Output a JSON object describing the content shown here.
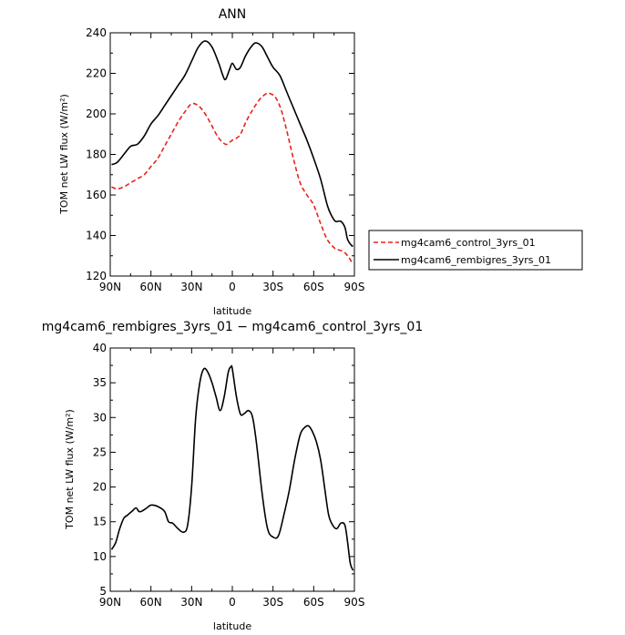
{
  "chart_data": [
    {
      "type": "line",
      "title": "ANN",
      "xlabel": "latitude",
      "ylabel": "TOM net LW flux (W/m²)",
      "ylim": [
        120,
        240
      ],
      "yticks": [
        120,
        140,
        160,
        180,
        200,
        220,
        240
      ],
      "xlim": [
        90,
        -90
      ],
      "xticks": [
        90,
        60,
        30,
        0,
        -30,
        -60,
        -90
      ],
      "xtick_labels": [
        "90N",
        "60N",
        "30N",
        "0",
        "30S",
        "60S",
        "90S"
      ],
      "legend": "right",
      "series": [
        {
          "name": "mg4cam6_control_3yrs_01",
          "color": "#e8231e",
          "dash": "dashed",
          "x": [
            89,
            85,
            80,
            75,
            70,
            65,
            60,
            55,
            50,
            45,
            40,
            35,
            30,
            25,
            20,
            15,
            10,
            5,
            2,
            0,
            -3,
            -6,
            -10,
            -15,
            -20,
            -25,
            -28,
            -32,
            -36,
            -40,
            -45,
            -50,
            -55,
            -60,
            -65,
            -70,
            -75,
            -78,
            -82,
            -85,
            -88,
            -89
          ],
          "y": [
            164,
            163,
            164,
            166,
            168,
            170,
            174,
            178,
            184,
            190,
            196,
            201,
            205,
            204,
            200,
            194,
            188,
            185,
            186,
            187,
            188,
            190,
            196,
            202,
            207,
            210,
            210,
            208,
            202,
            192,
            178,
            166,
            160,
            155,
            146,
            138,
            134,
            133,
            132,
            130,
            127,
            126
          ]
        },
        {
          "name": "mg4cam6_rembigres_3yrs_01",
          "color": "#000000",
          "dash": "solid",
          "x": [
            89,
            85,
            80,
            75,
            70,
            65,
            60,
            55,
            50,
            45,
            40,
            35,
            30,
            25,
            20,
            15,
            10,
            7,
            5,
            2,
            0,
            -3,
            -6,
            -10,
            -15,
            -18,
            -22,
            -26,
            -30,
            -35,
            -40,
            -45,
            -50,
            -55,
            -60,
            -65,
            -70,
            -73,
            -76,
            -80,
            -83,
            -85,
            -88,
            -89
          ],
          "y": [
            175,
            176,
            180,
            184,
            185,
            189,
            195,
            199,
            204,
            209,
            214,
            219,
            226,
            233,
            236,
            233,
            225,
            219,
            217,
            222,
            225,
            222,
            223,
            229,
            234,
            235,
            233,
            228,
            223,
            219,
            211,
            203,
            195,
            187,
            178,
            168,
            155,
            150,
            147,
            147,
            144,
            138,
            135,
            135
          ]
        }
      ]
    },
    {
      "type": "line",
      "title": "mg4cam6_rembigres_3yrs_01 − mg4cam6_control_3yrs_01",
      "xlabel": "latitude",
      "ylabel": "TOM net LW flux (W/m²)",
      "ylim": [
        5,
        40
      ],
      "yticks": [
        5,
        10,
        15,
        20,
        25,
        30,
        35,
        40
      ],
      "xlim": [
        90,
        -90
      ],
      "xticks": [
        90,
        60,
        30,
        0,
        -30,
        -60,
        -90
      ],
      "xtick_labels": [
        "90N",
        "60N",
        "30N",
        "0",
        "30S",
        "60S",
        "90S"
      ],
      "series": [
        {
          "color": "#000000",
          "dash": "solid",
          "x": [
            89,
            86,
            83,
            80,
            77,
            74,
            71,
            69,
            67,
            63,
            60,
            55,
            50,
            47,
            44,
            40,
            36,
            33,
            30,
            27,
            24,
            21,
            18,
            15,
            12,
            9,
            6,
            3,
            1,
            0,
            -3,
            -6,
            -9,
            -12,
            -15,
            -18,
            -22,
            -26,
            -30,
            -34,
            -38,
            -42,
            -46,
            -50,
            -53,
            -56,
            -59,
            -62,
            -65,
            -68,
            -71,
            -74,
            -77,
            -80,
            -83,
            -85,
            -87,
            -89
          ],
          "y": [
            11,
            12,
            14,
            15.5,
            16,
            16.5,
            17,
            16.5,
            16.5,
            17,
            17.4,
            17.2,
            16.5,
            15,
            14.8,
            14,
            13.5,
            14.5,
            20,
            30,
            35,
            37,
            36.5,
            35,
            33,
            31,
            33,
            36.5,
            37.3,
            37,
            33,
            30.5,
            30.6,
            31,
            30,
            26,
            19,
            14,
            12.8,
            13,
            16,
            19.5,
            24,
            27.5,
            28.5,
            28.8,
            28,
            26.5,
            24,
            20,
            16,
            14.5,
            14,
            14.8,
            14.5,
            12,
            9,
            8
          ]
        }
      ]
    }
  ]
}
